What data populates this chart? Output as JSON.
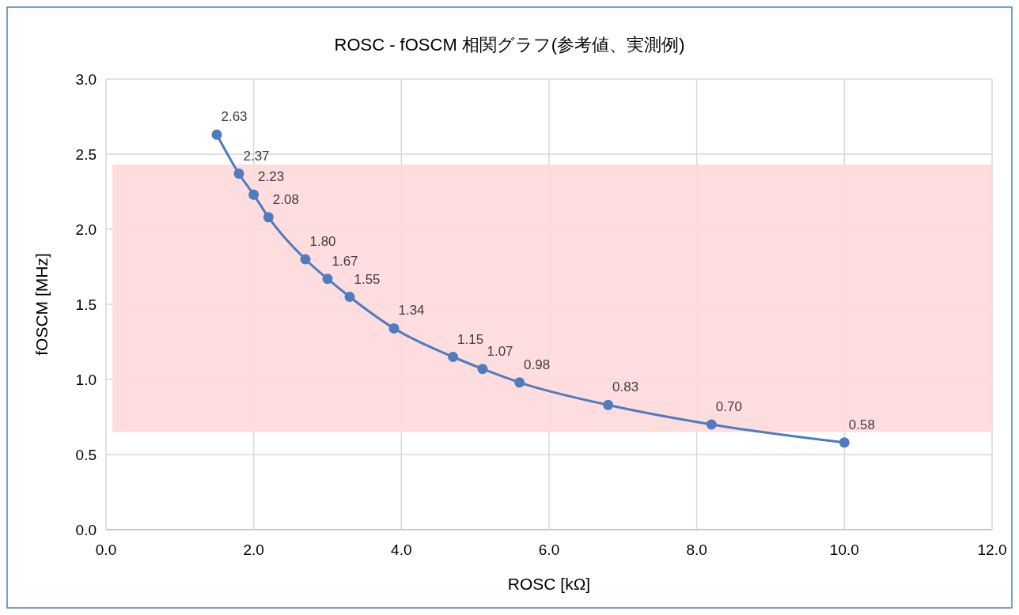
{
  "chart_data": {
    "type": "line",
    "title": "ROSC - fOSCM 相関グラフ(参考値、実測例)",
    "xlabel": "ROSC [kΩ]",
    "ylabel": "fOSCM [MHz]",
    "x": [
      1.5,
      1.8,
      2.0,
      2.2,
      2.7,
      3.0,
      3.3,
      3.9,
      4.7,
      5.1,
      5.6,
      6.8,
      8.2,
      10.0
    ],
    "series": [
      {
        "color": "#4f7bbf",
        "values": [
          2.63,
          2.37,
          2.23,
          2.08,
          1.8,
          1.67,
          1.55,
          1.34,
          1.15,
          1.07,
          0.98,
          0.83,
          0.7,
          0.58
        ],
        "value_labels": [
          "2.63",
          "2.37",
          "2.23",
          "2.08",
          "1.80",
          "1.67",
          "1.55",
          "1.34",
          "1.15",
          "1.07",
          "0.98",
          "0.83",
          "0.70",
          "0.58"
        ]
      }
    ],
    "xlim": [
      0,
      12
    ],
    "xticks": [
      {
        "value": 0,
        "label": "0.0"
      },
      {
        "value": 2,
        "label": "2.0"
      },
      {
        "value": 4,
        "label": "4.0"
      },
      {
        "value": 6,
        "label": "6.0"
      },
      {
        "value": 8,
        "label": "8.0"
      },
      {
        "value": 10,
        "label": "10.0"
      },
      {
        "value": 12,
        "label": "12.0"
      }
    ],
    "ylim": [
      0,
      3
    ],
    "yticks": [
      {
        "value": 0,
        "label": "0.0"
      },
      {
        "value": 0.5,
        "label": "0.5"
      },
      {
        "value": 1,
        "label": "1.0"
      },
      {
        "value": 1.5,
        "label": "1.5"
      },
      {
        "value": 2,
        "label": "2.0"
      },
      {
        "value": 2.5,
        "label": "2.5"
      },
      {
        "value": 3,
        "label": "3.0"
      }
    ],
    "bands": [
      {
        "axis": "y",
        "from": 0.65,
        "to": 2.43,
        "color": "#fdd9d9"
      }
    ],
    "grid": true,
    "marker": "circle",
    "line_style": "solid"
  }
}
